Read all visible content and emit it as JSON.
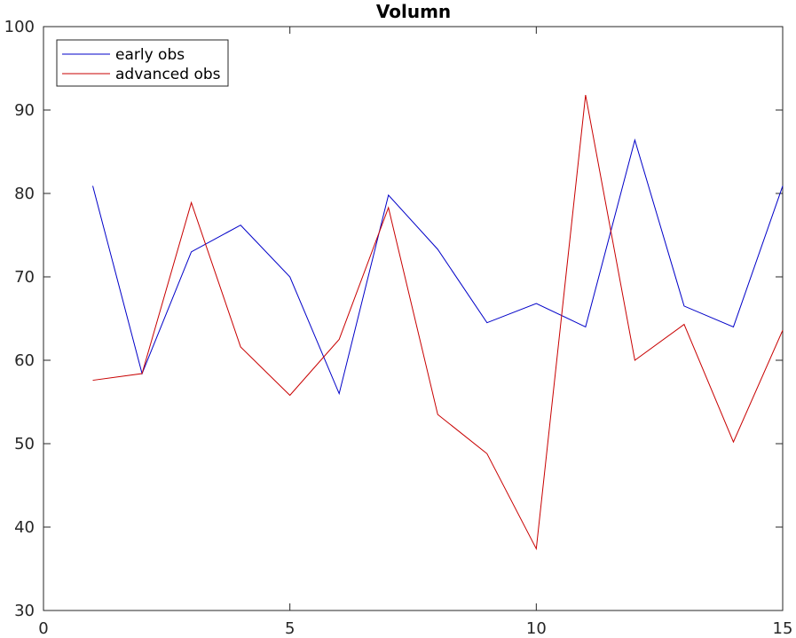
{
  "chart_data": {
    "type": "line",
    "title": "Volumn",
    "xlabel": "",
    "ylabel": "",
    "xlim": [
      0,
      15
    ],
    "ylim": [
      30,
      100
    ],
    "xticks": [
      0,
      5,
      10,
      15
    ],
    "yticks": [
      30,
      40,
      50,
      60,
      70,
      80,
      90,
      100
    ],
    "grid": false,
    "legend_position": "top-left",
    "x": [
      1,
      2,
      3,
      4,
      5,
      6,
      7,
      8,
      9,
      10,
      11,
      12,
      13,
      14,
      15
    ],
    "series": [
      {
        "name": "early obs",
        "color": "#0000c8",
        "values": [
          80.9,
          58.4,
          73.0,
          76.2,
          70.0,
          56.0,
          79.8,
          73.3,
          64.5,
          66.8,
          64.0,
          86.4,
          66.5,
          64.0,
          80.9
        ]
      },
      {
        "name": "advanced obs",
        "color": "#c80000",
        "values": [
          57.6,
          58.4,
          78.9,
          61.6,
          55.8,
          62.5,
          78.3,
          53.5,
          48.8,
          37.4,
          91.8,
          60.0,
          64.3,
          50.2,
          63.6
        ]
      }
    ]
  }
}
